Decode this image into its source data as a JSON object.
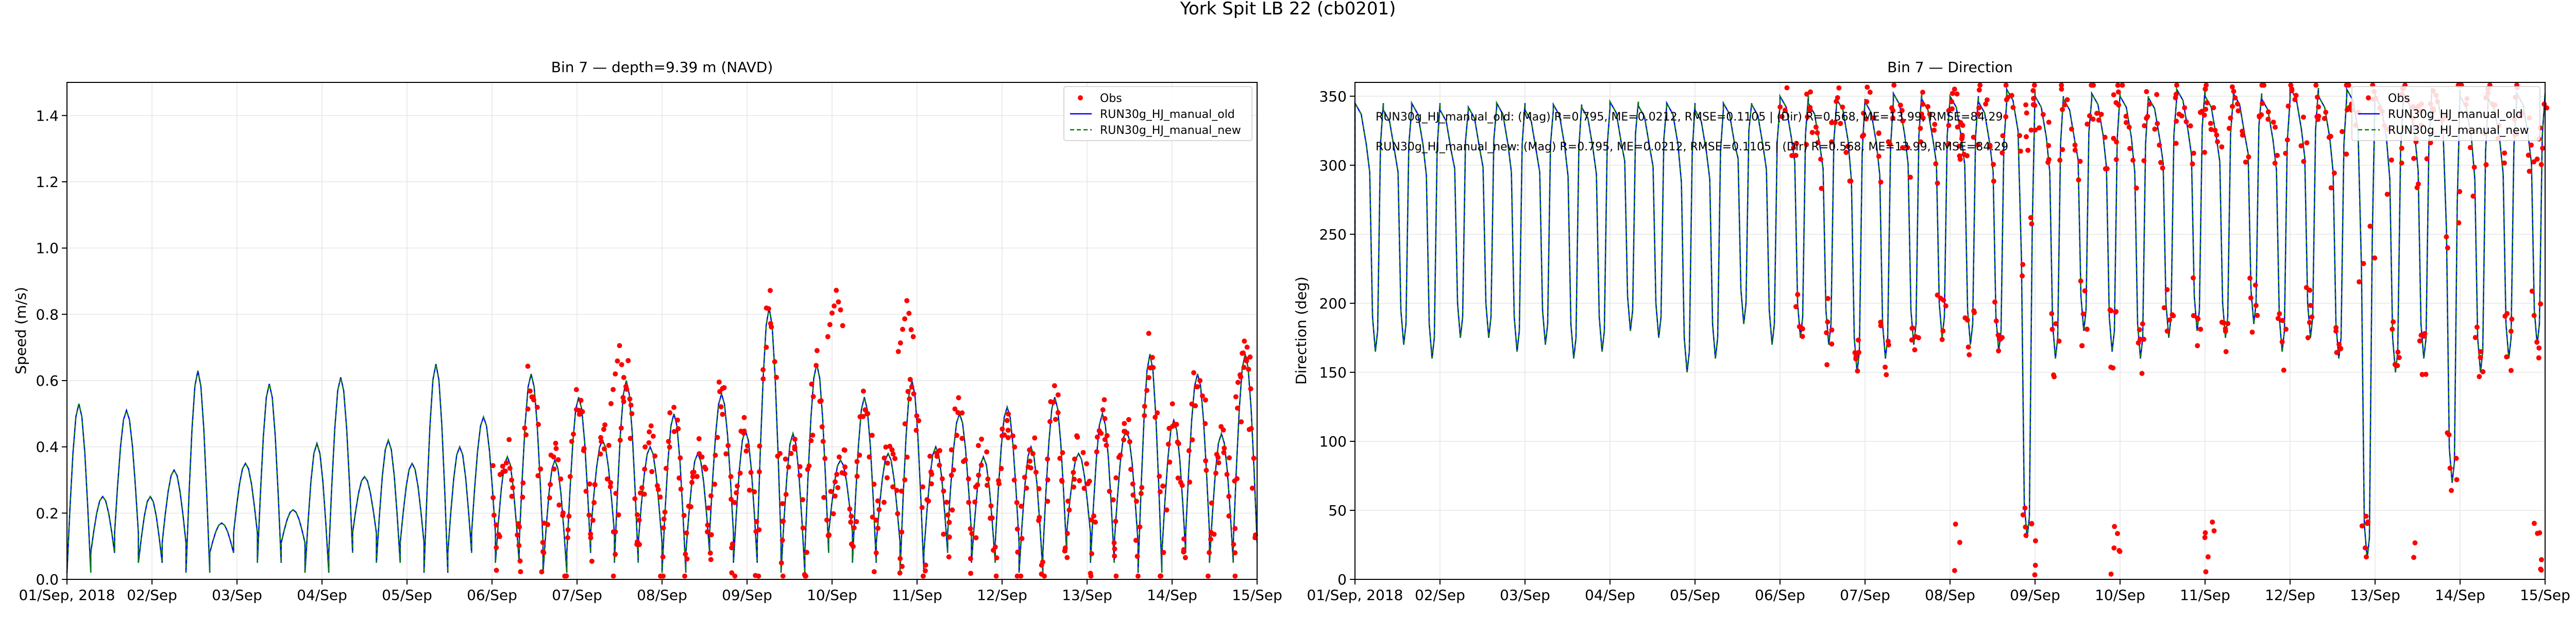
{
  "figure": {
    "suptitle": "York Spit LB 22 (cb0201)"
  },
  "chart_data": [
    {
      "type": "line",
      "title": "Bin 7 — depth=9.39 m (NAVD)",
      "xlabel": "",
      "ylabel": "Speed (m/s)",
      "xlim": [
        0,
        14
      ],
      "ylim": [
        0,
        1.5
      ],
      "x_ticks": [
        0,
        1,
        2,
        3,
        4,
        5,
        6,
        7,
        8,
        9,
        10,
        11,
        12,
        13,
        14
      ],
      "x_tick_labels": [
        "01/Sep, 2018",
        "02/Sep",
        "03/Sep",
        "04/Sep",
        "05/Sep",
        "06/Sep",
        "07/Sep",
        "08/Sep",
        "09/Sep",
        "10/Sep",
        "11/Sep",
        "12/Sep",
        "13/Sep",
        "14/Sep",
        "15/Sep"
      ],
      "y_ticks": [
        0.0,
        0.2,
        0.4,
        0.6,
        0.8,
        1.0,
        1.2,
        1.4
      ],
      "y_tick_labels": [
        "0.0",
        "0.2",
        "0.4",
        "0.6",
        "0.8",
        "1.0",
        "1.2",
        "1.4"
      ],
      "grid": true,
      "legend_position": "top-right",
      "model_peaks": [
        0.53,
        0.25,
        0.51,
        0.25,
        0.33,
        0.63,
        0.17,
        0.35,
        0.59,
        0.21,
        0.41,
        0.61,
        0.31,
        0.42,
        0.35,
        0.65,
        0.4,
        0.49,
        0.37,
        0.62,
        0.36,
        0.55,
        0.42,
        0.6,
        0.4,
        0.5,
        0.38,
        0.56,
        0.45,
        0.82,
        0.44,
        0.65,
        0.36,
        0.55,
        0.38,
        0.6,
        0.4,
        0.5,
        0.37,
        0.52,
        0.4,
        0.55,
        0.38,
        0.5,
        0.45,
        0.68,
        0.48,
        0.62,
        0.44,
        0.68
      ],
      "obs_start_day": 5.0,
      "obs_extra_peaks": [
        {
          "day": 9.05,
          "value": 0.88
        },
        {
          "day": 9.88,
          "value": 0.84
        },
        {
          "day": 6.5,
          "value": 0.7
        },
        {
          "day": 13.85,
          "value": 0.71
        }
      ],
      "series": [
        {
          "name": "Obs",
          "color": "#ff0000",
          "style": "points"
        },
        {
          "name": "RUN30g_HJ_manual_old",
          "color": "#0000ff",
          "style": "solid"
        },
        {
          "name": "RUN30g_HJ_manual_new",
          "color": "#008000",
          "style": "dashed"
        }
      ]
    },
    {
      "type": "line",
      "title": "Bin 7 — Direction",
      "xlabel": "",
      "ylabel": "Direction (deg)",
      "xlim": [
        0,
        14
      ],
      "ylim": [
        0,
        360
      ],
      "x_ticks": [
        0,
        1,
        2,
        3,
        4,
        5,
        6,
        7,
        8,
        9,
        10,
        11,
        12,
        13,
        14
      ],
      "x_tick_labels": [
        "01/Sep, 2018",
        "02/Sep",
        "03/Sep",
        "04/Sep",
        "05/Sep",
        "06/Sep",
        "07/Sep",
        "08/Sep",
        "09/Sep",
        "10/Sep",
        "11/Sep",
        "12/Sep",
        "13/Sep",
        "14/Sep",
        "15/Sep"
      ],
      "y_ticks": [
        0,
        50,
        100,
        150,
        200,
        250,
        300,
        350
      ],
      "y_tick_labels": [
        "0",
        "50",
        "100",
        "150",
        "200",
        "250",
        "300",
        "350"
      ],
      "grid": true,
      "legend_position": "top-right",
      "model_troughs": [
        165,
        170,
        160,
        175,
        175,
        165,
        170,
        160,
        165,
        180,
        175,
        150,
        160,
        185,
        170,
        175,
        170,
        150,
        160,
        170,
        175,
        170,
        165,
        30,
        160,
        180,
        165,
        160,
        175,
        180,
        175,
        185,
        165,
        175,
        160,
        15,
        150,
        160,
        70,
        150,
        160,
        170
      ],
      "model_highs": [
        345,
        340,
        345,
        340,
        342,
        345,
        340,
        344,
        342,
        346,
        343,
        345,
        340,
        345,
        344,
        350,
        345,
        348,
        346,
        352,
        348,
        350,
        346,
        355,
        350,
        348,
        352,
        350,
        349,
        355,
        350,
        352,
        348,
        356,
        350,
        355,
        350,
        352,
        355,
        350,
        348,
        352
      ],
      "obs_start_day": 5.0,
      "series": [
        {
          "name": "Obs",
          "color": "#ff0000",
          "style": "points"
        },
        {
          "name": "RUN30g_HJ_manual_old",
          "color": "#0000ff",
          "style": "solid"
        },
        {
          "name": "RUN30g_HJ_manual_new",
          "color": "#008000",
          "style": "dashed"
        }
      ],
      "annotations": [
        "RUN30g_HJ_manual_old: (Mag) R=0.795, ME=0.0212, RMSE=0.1105 | (Dir) R=0.568, ME=13.99, RMSE=84.29",
        "RUN30g_HJ_manual_new: (Mag) R=0.795, ME=0.0212, RMSE=0.1105 | (Dir) R=0.568, ME=13.99, RMSE=84.29"
      ]
    }
  ]
}
